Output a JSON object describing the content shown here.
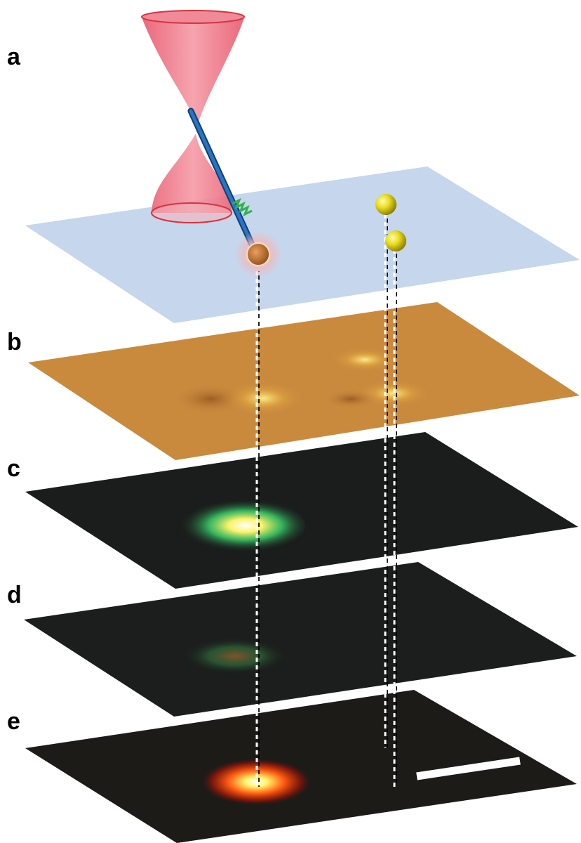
{
  "panels": [
    {
      "label": "a"
    },
    {
      "label": "b"
    },
    {
      "label": "c"
    },
    {
      "label": "d"
    },
    {
      "label": "e"
    }
  ],
  "colors": {
    "substrate_plane": "#c6d6ec",
    "beam": "#ee6f82",
    "beam_rim": "#d9323f",
    "fiber": "#1f5fa8",
    "fiber_tip_coil": "#2eb34a",
    "gold_particle": "#e9dc1e",
    "target_particle": "#c86a2a",
    "optical_plane": "#c98a3e",
    "dark_plane": "#1a1d1c",
    "emission_green": "#3ad06a",
    "emission_yellow": "#fff36a",
    "emission_red": "#ff2a10",
    "scale_bar": "#ffffff"
  },
  "icons": [
    "beam-waist",
    "optical-fiber-probe",
    "gold-nanoparticle"
  ]
}
